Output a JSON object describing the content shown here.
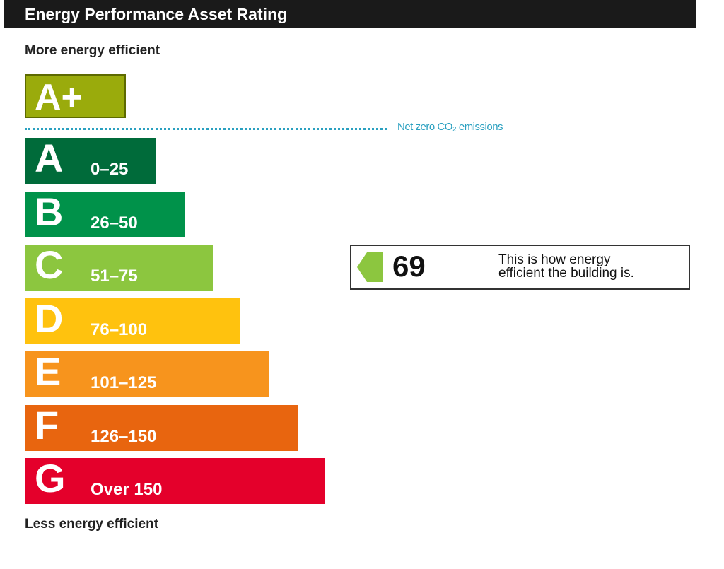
{
  "header": {
    "title": "Energy Performance Asset Rating"
  },
  "top_label": "More energy efficient",
  "top_band": {
    "letter": "A+",
    "color": "#9aab0c"
  },
  "net_zero_label": "Net zero CO₂ emissions",
  "bands": [
    {
      "letter": "A",
      "range": "0–25",
      "color": "#006b3a"
    },
    {
      "letter": "B",
      "range": "26–50",
      "color": "#00924a"
    },
    {
      "letter": "C",
      "range": "51–75",
      "color": "#8cc63f"
    },
    {
      "letter": "D",
      "range": "76–100",
      "color": "#ffc20e"
    },
    {
      "letter": "E",
      "range": "101–125",
      "color": "#f7941d"
    },
    {
      "letter": "F",
      "range": "126–150",
      "color": "#e8650f"
    },
    {
      "letter": "G",
      "range": "Over 150",
      "color": "#e4002b"
    }
  ],
  "rating": {
    "value": "69",
    "color": "#8cc63f",
    "description": [
      "This is how energy",
      "efficient the building is."
    ]
  },
  "bottom_label": "Less energy efficient"
}
